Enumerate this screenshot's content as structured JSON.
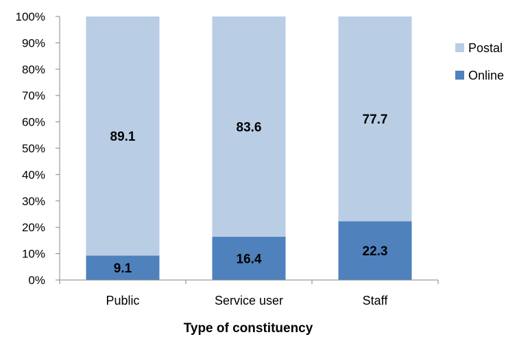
{
  "chart_data": {
    "type": "bar",
    "stacked": true,
    "categories": [
      "Public",
      "Service user",
      "Staff"
    ],
    "series": [
      {
        "name": "Online",
        "values": [
          9.1,
          16.4,
          22.3
        ],
        "color": "#4f81bd"
      },
      {
        "name": "Postal",
        "values": [
          89.1,
          83.6,
          77.7
        ],
        "color": "#b9cde5"
      }
    ],
    "xlabel": "Type of constituency",
    "ylabel": "",
    "ylim": [
      0,
      100
    ],
    "yticks": [
      "0%",
      "10%",
      "20%",
      "30%",
      "40%",
      "50%",
      "60%",
      "70%",
      "80%",
      "90%",
      "100%"
    ],
    "legend_order": [
      "Postal",
      "Online"
    ],
    "legend_position": "right",
    "grid": false
  }
}
